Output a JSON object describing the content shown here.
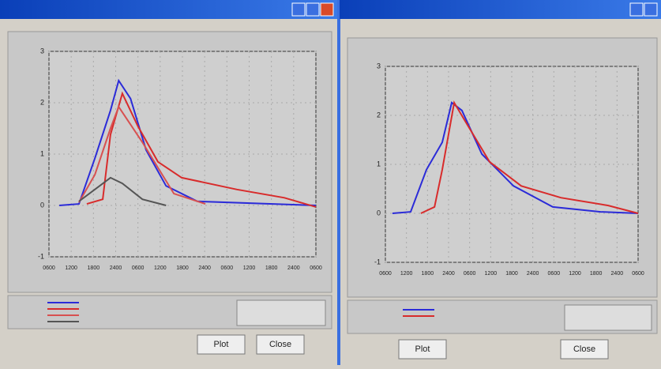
{
  "chart_data": [
    {
      "type": "line",
      "xlim": [
        0,
        72
      ],
      "ylim": [
        -1,
        3
      ],
      "xticks": [
        {
          "value": 0,
          "label": "0600"
        },
        {
          "value": 6,
          "label": "1200"
        },
        {
          "value": 12,
          "label": "1800"
        },
        {
          "value": 18,
          "label": "2400"
        },
        {
          "value": 24,
          "label": "0600"
        },
        {
          "value": 30,
          "label": "1200"
        },
        {
          "value": 36,
          "label": "1800"
        },
        {
          "value": 42,
          "label": "2400"
        },
        {
          "value": 48,
          "label": "0600"
        },
        {
          "value": 54,
          "label": "1200"
        },
        {
          "value": 60,
          "label": "1800"
        },
        {
          "value": 66,
          "label": "2400"
        },
        {
          "value": 72,
          "label": "0600"
        }
      ],
      "yticks": [
        -1,
        0,
        1,
        2,
        3
      ],
      "grid": true,
      "series": [
        {
          "color": "#2b2bd8",
          "x": [
            2.8,
            8.1,
            12.4,
            16.6,
            18.8,
            22,
            26.2,
            31.6,
            40,
            72
          ],
          "values": [
            0,
            0.03,
            0.92,
            1.85,
            2.43,
            2.08,
            1.08,
            0.38,
            0.08,
            0
          ]
        },
        {
          "color": "#d82b2b",
          "x": [
            10.2,
            14.5,
            16.6,
            19.8,
            24,
            29.4,
            35.8,
            50.7,
            63.5,
            72
          ],
          "values": [
            0.03,
            0.12,
            1.38,
            2.18,
            1.54,
            0.85,
            0.54,
            0.31,
            0.15,
            -0.03
          ]
        },
        {
          "color": "#d85050",
          "x": [
            8.1,
            12.4,
            16.6,
            18.8,
            25.2,
            33.7,
            42.2
          ],
          "values": [
            0.06,
            0.6,
            1.5,
            1.92,
            1.23,
            0.23,
            0.03
          ]
        },
        {
          "color": "#555555",
          "x": [
            8.1,
            16.6,
            19.8,
            25.2,
            31.6
          ],
          "values": [
            0.08,
            0.54,
            0.43,
            0.12,
            0
          ]
        }
      ]
    },
    {
      "type": "line",
      "xlim": [
        0,
        72
      ],
      "ylim": [
        -1,
        3
      ],
      "xticks": [
        {
          "value": 0,
          "label": "0600"
        },
        {
          "value": 6,
          "label": "1200"
        },
        {
          "value": 12,
          "label": "1800"
        },
        {
          "value": 18,
          "label": "2400"
        },
        {
          "value": 24,
          "label": "0600"
        },
        {
          "value": 30,
          "label": "1200"
        },
        {
          "value": 36,
          "label": "1800"
        },
        {
          "value": 42,
          "label": "2400"
        },
        {
          "value": 48,
          "label": "0600"
        },
        {
          "value": 54,
          "label": "1200"
        },
        {
          "value": 60,
          "label": "1800"
        },
        {
          "value": 66,
          "label": "2400"
        },
        {
          "value": 72,
          "label": "0600"
        }
      ],
      "yticks": [
        -1,
        0,
        1,
        2,
        3
      ],
      "grid": true,
      "series": [
        {
          "color": "#2b2bd8",
          "x": [
            2,
            7.2,
            11.7,
            16.2,
            18.9,
            21.8,
            27.5,
            36.5,
            47.7,
            61.3,
            72
          ],
          "values": [
            0,
            0.03,
            0.89,
            1.45,
            2.26,
            2.1,
            1.21,
            0.56,
            0.13,
            0.03,
            0
          ]
        },
        {
          "color": "#d82b2b",
          "x": [
            10.1,
            14,
            16.2,
            19.6,
            23,
            29.7,
            38.7,
            50,
            63.5,
            72
          ],
          "values": [
            0,
            0.13,
            0.89,
            2.26,
            1.85,
            1.05,
            0.56,
            0.32,
            0.16,
            0
          ]
        }
      ]
    }
  ],
  "windows": [
    {
      "buttons": [
        "Plot",
        "Close"
      ]
    },
    {
      "buttons": [
        "Plot",
        "Close"
      ]
    }
  ]
}
